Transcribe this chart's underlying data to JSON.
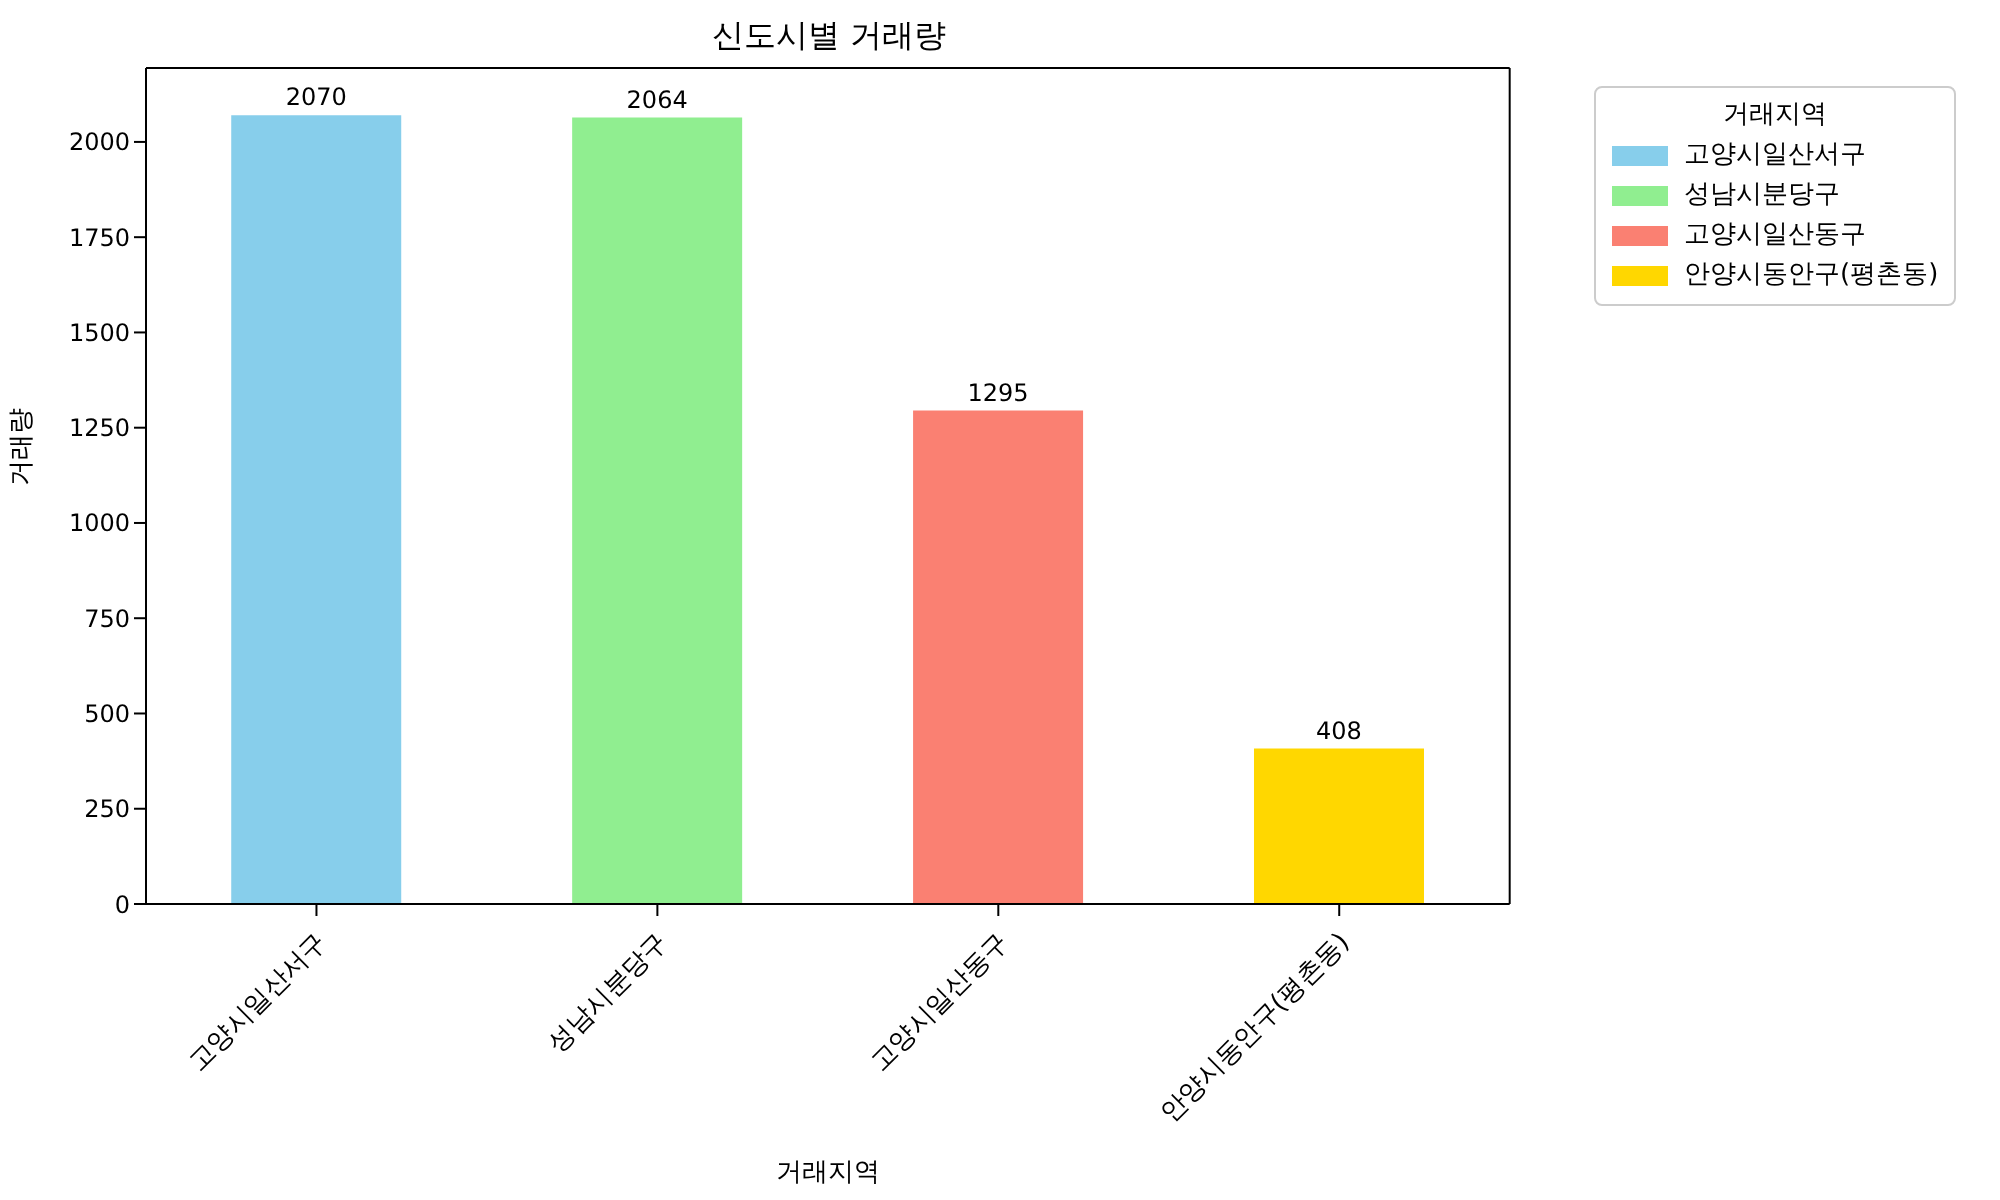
{
  "chart_data": {
    "type": "bar",
    "title": "신도시별 거래량",
    "xlabel": "거래지역",
    "ylabel": "거래량",
    "legend_title": "거래지역",
    "categories": [
      "고양시일산서구",
      "성남시분당구",
      "고양시일산동구",
      "안양시동안구(평촌동)"
    ],
    "series": [
      {
        "name": "고양시일산서구",
        "color": "#87ceeb",
        "values": [
          2070,
          null,
          null,
          null
        ]
      },
      {
        "name": "성남시분당구",
        "color": "#90ee90",
        "values": [
          null,
          2064,
          null,
          null
        ]
      },
      {
        "name": "고양시일산동구",
        "color": "#fa8072",
        "values": [
          null,
          null,
          1295,
          null
        ]
      },
      {
        "name": "안양시동안구(평촌동)",
        "color": "#ffd700",
        "values": [
          null,
          null,
          null,
          408
        ]
      }
    ],
    "stacked": true,
    "ylim": [
      0,
      2194
    ],
    "yticks": [
      0,
      250,
      500,
      750,
      1000,
      1250,
      1500,
      1750,
      2000
    ],
    "grid": false,
    "legend": "top right",
    "data_labels": true
  }
}
